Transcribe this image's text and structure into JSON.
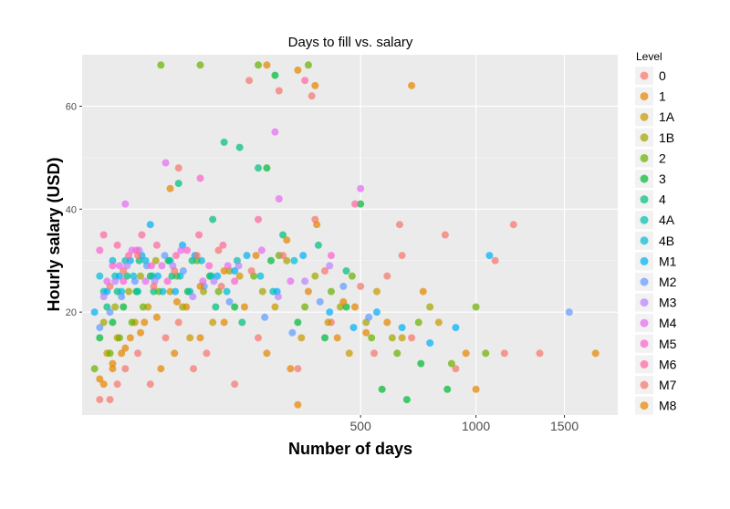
{
  "chart_data": {
    "type": "scatter",
    "title": "Days to fill vs. salary",
    "xlabel": "Number of days",
    "ylabel": "Hourly salary (USD)",
    "x_scale": "sqrt",
    "xlim": [
      0,
      1850
    ],
    "ylim": [
      0,
      70
    ],
    "x_ticks": [
      500,
      1000,
      1500
    ],
    "x_tick_labels": [
      "500",
      "1000",
      "1500"
    ],
    "y_ticks": [
      20,
      40,
      60
    ],
    "y_tick_labels": [
      "20",
      "40",
      "60"
    ],
    "grid": true,
    "background": "#ebebeb",
    "legend": {
      "title": "Level",
      "position": "right",
      "entries": [
        "0",
        "1",
        "1A",
        "1B",
        "2",
        "3",
        "4",
        "4A",
        "4B",
        "M1",
        "M2",
        "M3",
        "M4",
        "M5",
        "M6",
        "M7",
        "M8"
      ],
      "colors": [
        "#f8766d",
        "#e58700",
        "#c99800",
        "#a3a500",
        "#6bb100",
        "#00ba38",
        "#00bf7d",
        "#00c0af",
        "#00bcd8",
        "#00b0f6",
        "#619cff",
        "#b983ff",
        "#e76bf3",
        "#fd61d1",
        "#ff67a4",
        "#f8766d",
        "#e58700"
      ]
    },
    "series": [
      {
        "name": "0",
        "points": [
          [
            2,
            3
          ],
          [
            5,
            3
          ],
          [
            8,
            6
          ],
          [
            12,
            9
          ],
          [
            20,
            12
          ],
          [
            30,
            6
          ],
          [
            45,
            15
          ],
          [
            60,
            18
          ],
          [
            80,
            9
          ],
          [
            100,
            12
          ],
          [
            150,
            6
          ],
          [
            200,
            15
          ],
          [
            300,
            9
          ],
          [
            400,
            18
          ],
          [
            550,
            12
          ],
          [
            700,
            15
          ],
          [
            900,
            9
          ],
          [
            1150,
            12
          ],
          [
            1350,
            12
          ],
          [
            1100,
            30
          ],
          [
            1200,
            37
          ],
          [
            850,
            35
          ],
          [
            650,
            37
          ],
          [
            350,
            38
          ],
          [
            250,
            63
          ],
          [
            180,
            65
          ],
          [
            60,
            48
          ],
          [
            120,
            32
          ],
          [
            500,
            25
          ],
          [
            600,
            27
          ]
        ]
      },
      {
        "name": "1",
        "points": [
          [
            3,
            6
          ],
          [
            6,
            9
          ],
          [
            10,
            12
          ],
          [
            15,
            15
          ],
          [
            25,
            18
          ],
          [
            40,
            9
          ],
          [
            55,
            12
          ],
          [
            70,
            21
          ],
          [
            90,
            15
          ],
          [
            130,
            18
          ],
          [
            170,
            21
          ],
          [
            220,
            12
          ],
          [
            280,
            9
          ],
          [
            330,
            24
          ],
          [
            420,
            15
          ],
          [
            480,
            21
          ],
          [
            600,
            18
          ],
          [
            750,
            24
          ],
          [
            950,
            12
          ],
          [
            1700,
            12
          ],
          [
            700,
            64
          ],
          [
            350,
            64
          ],
          [
            220,
            68
          ],
          [
            300,
            67
          ],
          [
            50,
            44
          ],
          [
            300,
            2
          ],
          [
            1000,
            5
          ]
        ]
      },
      {
        "name": "1A",
        "points": [
          [
            4,
            12
          ],
          [
            8,
            15
          ],
          [
            18,
            18
          ],
          [
            28,
            21
          ],
          [
            50,
            24
          ],
          [
            75,
            15
          ],
          [
            110,
            18
          ],
          [
            160,
            27
          ],
          [
            240,
            21
          ],
          [
            310,
            15
          ],
          [
            390,
            18
          ],
          [
            460,
            12
          ],
          [
            560,
            24
          ],
          [
            660,
            15
          ],
          [
            820,
            18
          ]
        ]
      },
      {
        "name": "1B",
        "points": [
          [
            3,
            18
          ],
          [
            7,
            21
          ],
          [
            14,
            24
          ],
          [
            22,
            27
          ],
          [
            35,
            30
          ],
          [
            65,
            21
          ],
          [
            95,
            24
          ],
          [
            140,
            28
          ],
          [
            210,
            24
          ],
          [
            270,
            30
          ],
          [
            350,
            27
          ],
          [
            430,
            21
          ],
          [
            520,
            18
          ],
          [
            620,
            15
          ],
          [
            780,
            21
          ]
        ]
      },
      {
        "name": "2",
        "points": [
          [
            1,
            9
          ],
          [
            5,
            12
          ],
          [
            9,
            15
          ],
          [
            16,
            18
          ],
          [
            24,
            21
          ],
          [
            38,
            24
          ],
          [
            58,
            27
          ],
          [
            85,
            30
          ],
          [
            120,
            24
          ],
          [
            190,
            27
          ],
          [
            250,
            31
          ],
          [
            320,
            21
          ],
          [
            400,
            24
          ],
          [
            470,
            27
          ],
          [
            540,
            15
          ],
          [
            640,
            12
          ],
          [
            730,
            18
          ],
          [
            880,
            10
          ],
          [
            1000,
            21
          ],
          [
            1050,
            12
          ],
          [
            330,
            68
          ],
          [
            200,
            68
          ],
          [
            90,
            68
          ],
          [
            40,
            68
          ]
        ]
      },
      {
        "name": "3",
        "points": [
          [
            2,
            15
          ],
          [
            6,
            18
          ],
          [
            11,
            21
          ],
          [
            19,
            24
          ],
          [
            30,
            27
          ],
          [
            48,
            30
          ],
          [
            72,
            24
          ],
          [
            105,
            27
          ],
          [
            150,
            21
          ],
          [
            230,
            30
          ],
          [
            300,
            18
          ],
          [
            380,
            15
          ],
          [
            450,
            21
          ],
          [
            500,
            41
          ],
          [
            580,
            5
          ],
          [
            680,
            3
          ],
          [
            740,
            10
          ],
          [
            860,
            5
          ],
          [
            240,
            66
          ],
          [
            220,
            48
          ]
        ]
      },
      {
        "name": "4",
        "points": [
          [
            4,
            21
          ],
          [
            8,
            24
          ],
          [
            13,
            27
          ],
          [
            21,
            30
          ],
          [
            33,
            24
          ],
          [
            52,
            27
          ],
          [
            78,
            30
          ],
          [
            115,
            21
          ],
          [
            165,
            18
          ],
          [
            200,
            48
          ],
          [
            160,
            52
          ],
          [
            130,
            53
          ],
          [
            60,
            45
          ],
          [
            110,
            38
          ],
          [
            260,
            35
          ],
          [
            360,
            33
          ],
          [
            450,
            28
          ]
        ]
      },
      {
        "name": "4A",
        "points": [
          [
            3,
            24
          ],
          [
            7,
            27
          ],
          [
            12,
            30
          ],
          [
            20,
            24
          ],
          [
            32,
            27
          ],
          [
            50,
            30
          ],
          [
            75,
            24
          ],
          [
            108,
            27
          ],
          [
            155,
            30
          ],
          [
            235,
            24
          ]
        ]
      },
      {
        "name": "4B",
        "points": [
          [
            2,
            27
          ],
          [
            6,
            30
          ],
          [
            10,
            24
          ],
          [
            17,
            27
          ],
          [
            26,
            30
          ],
          [
            42,
            24
          ],
          [
            62,
            27
          ],
          [
            92,
            30
          ],
          [
            135,
            24
          ],
          [
            205,
            27
          ],
          [
            290,
            30
          ]
        ]
      },
      {
        "name": "M1",
        "points": [
          [
            1,
            20
          ],
          [
            4,
            24
          ],
          [
            9,
            27
          ],
          [
            15,
            30
          ],
          [
            23,
            31
          ],
          [
            37,
            27
          ],
          [
            56,
            24
          ],
          [
            82,
            31
          ],
          [
            118,
            27
          ],
          [
            175,
            31
          ],
          [
            245,
            24
          ],
          [
            315,
            31
          ],
          [
            395,
            20
          ],
          [
            475,
            17
          ],
          [
            560,
            20
          ],
          [
            660,
            17
          ],
          [
            780,
            14
          ],
          [
            900,
            17
          ],
          [
            1070,
            31
          ],
          [
            30,
            37
          ],
          [
            65,
            33
          ],
          [
            150,
            28
          ]
        ]
      },
      {
        "name": "M2",
        "points": [
          [
            2,
            17
          ],
          [
            5,
            20
          ],
          [
            10,
            23
          ],
          [
            18,
            26
          ],
          [
            27,
            29
          ],
          [
            44,
            31
          ],
          [
            66,
            28
          ],
          [
            96,
            25
          ],
          [
            140,
            22
          ],
          [
            215,
            19
          ],
          [
            285,
            16
          ],
          [
            365,
            22
          ],
          [
            440,
            25
          ],
          [
            530,
            19
          ],
          [
            1530,
            20
          ]
        ]
      },
      {
        "name": "M3",
        "points": [
          [
            3,
            23
          ],
          [
            7,
            26
          ],
          [
            13,
            29
          ],
          [
            21,
            32
          ],
          [
            34,
            26
          ],
          [
            53,
            29
          ],
          [
            79,
            23
          ],
          [
            112,
            26
          ],
          [
            158,
            29
          ],
          [
            248,
            23
          ],
          [
            320,
            26
          ],
          [
            395,
            29
          ]
        ]
      },
      {
        "name": "M4",
        "points": [
          [
            4,
            26
          ],
          [
            9,
            29
          ],
          [
            16,
            32
          ],
          [
            26,
            26
          ],
          [
            41,
            29
          ],
          [
            63,
            32
          ],
          [
            94,
            26
          ],
          [
            137,
            29
          ],
          [
            208,
            32
          ],
          [
            280,
            26
          ],
          [
            500,
            44
          ],
          [
            240,
            55
          ],
          [
            250,
            42
          ],
          [
            12,
            41
          ],
          [
            45,
            49
          ]
        ]
      },
      {
        "name": "M5",
        "points": [
          [
            2,
            32
          ],
          [
            6,
            29
          ],
          [
            11,
            26
          ],
          [
            19,
            32
          ],
          [
            31,
            29
          ],
          [
            47,
            26
          ],
          [
            71,
            32
          ],
          [
            104,
            29
          ],
          [
            150,
            26
          ],
          [
            400,
            31
          ],
          [
            90,
            46
          ]
        ]
      },
      {
        "name": "M6",
        "points": [
          [
            3,
            35
          ],
          [
            8,
            33
          ],
          [
            14,
            31
          ],
          [
            23,
            35
          ],
          [
            36,
            33
          ],
          [
            57,
            31
          ],
          [
            88,
            35
          ],
          [
            128,
            33
          ],
          [
            200,
            38
          ],
          [
            320,
            65
          ],
          [
            480,
            41
          ]
        ]
      },
      {
        "name": "M7",
        "points": [
          [
            5,
            25
          ],
          [
            11,
            28
          ],
          [
            20,
            31
          ],
          [
            33,
            25
          ],
          [
            55,
            28
          ],
          [
            85,
            31
          ],
          [
            125,
            25
          ],
          [
            185,
            28
          ],
          [
            260,
            31
          ],
          [
            340,
            62
          ],
          [
            660,
            31
          ],
          [
            380,
            28
          ]
        ]
      },
      {
        "name": "M8",
        "points": [
          [
            2,
            7
          ],
          [
            6,
            10
          ],
          [
            12,
            13
          ],
          [
            22,
            16
          ],
          [
            36,
            19
          ],
          [
            58,
            22
          ],
          [
            90,
            25
          ],
          [
            130,
            28
          ],
          [
            195,
            31
          ],
          [
            270,
            34
          ],
          [
            355,
            37
          ],
          [
            440,
            22
          ],
          [
            520,
            16
          ]
        ]
      }
    ]
  }
}
